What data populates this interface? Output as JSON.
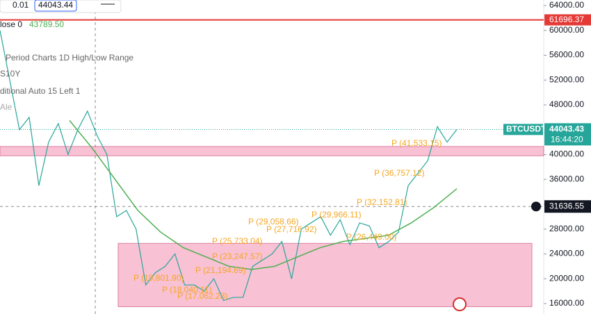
{
  "chart_data": {
    "type": "line",
    "symbol": "BTCUSDT",
    "series": [
      {
        "name": "price",
        "color": "#26a69a",
        "values": [
          60000,
          52000,
          44000,
          46000,
          35000,
          42000,
          45000,
          40000,
          44000,
          47000,
          43000,
          40000,
          30000,
          31000,
          28000,
          19000,
          21000,
          22000,
          24000,
          19000,
          19000,
          18000,
          20000,
          16500,
          17000,
          17000,
          22000,
          23000,
          24000,
          26000,
          20000,
          28000,
          29000,
          30000,
          27000,
          29500,
          25500,
          29000,
          28500,
          25000,
          26000,
          27500,
          35000,
          37000,
          39000,
          44500,
          42000,
          44043.43
        ]
      },
      {
        "name": "ma",
        "color": "#4caf50",
        "values": [
          45500,
          41000,
          36000,
          31000,
          27500,
          25000,
          23500,
          22000,
          21500,
          22000,
          23500,
          25000,
          26000,
          26500,
          27000,
          29000,
          31500,
          34500
        ]
      }
    ],
    "ylim": [
      16000,
      64000
    ],
    "yticks": [
      {
        "value": 64000,
        "label": "64000.00"
      },
      {
        "value": 60000,
        "label": "60000.00"
      },
      {
        "value": 56000,
        "label": "56000.00"
      },
      {
        "value": 52000,
        "label": "52000.00"
      },
      {
        "value": 48000,
        "label": "48000.00"
      },
      {
        "value": 44000,
        "label": "44000.00"
      },
      {
        "value": 40000,
        "label": "40000.00"
      },
      {
        "value": 36000,
        "label": "36000.00"
      },
      {
        "value": 32000,
        "label": "32000.00"
      },
      {
        "value": 28000,
        "label": "28000.00"
      },
      {
        "value": 24000,
        "label": "24000.00"
      },
      {
        "value": 20000,
        "label": "20000.00"
      },
      {
        "value": 16000,
        "label": "16000.00"
      }
    ],
    "red_level": {
      "value": 61696.37,
      "label": "61696.37"
    },
    "last": {
      "value": 44043.43,
      "label": "44043.43",
      "time": "16:44:20"
    },
    "crosshair": {
      "value": 31636.55,
      "label": "31636.55"
    },
    "zones": [
      [
        39800,
        41300
      ],
      [
        15500,
        25700
      ]
    ],
    "pivots": [
      "P (41,533.15)",
      "P (36,757.12)",
      "P (32,152.81)",
      "P (29,058.66)",
      "P (29,966.11)",
      "P (27,716.92)",
      "P (26,449.00)",
      "P (25,733.04)",
      "P (23,247.57)",
      "P (21,194.69)",
      "P (19,801.90)",
      "P (18,040.11)",
      "P (17,062.28)"
    ]
  },
  "toolbar": {
    "step": "0.01",
    "price_input": "44043.44"
  },
  "legend": {
    "close": "lose 0",
    "close_value": "43789.50",
    "indicator1": "Period Charts 1D High/Low Range",
    "indicator2": "S10Y",
    "indicator3": "ditional Auto 15 Left 1",
    "indicator4": "Ale"
  }
}
